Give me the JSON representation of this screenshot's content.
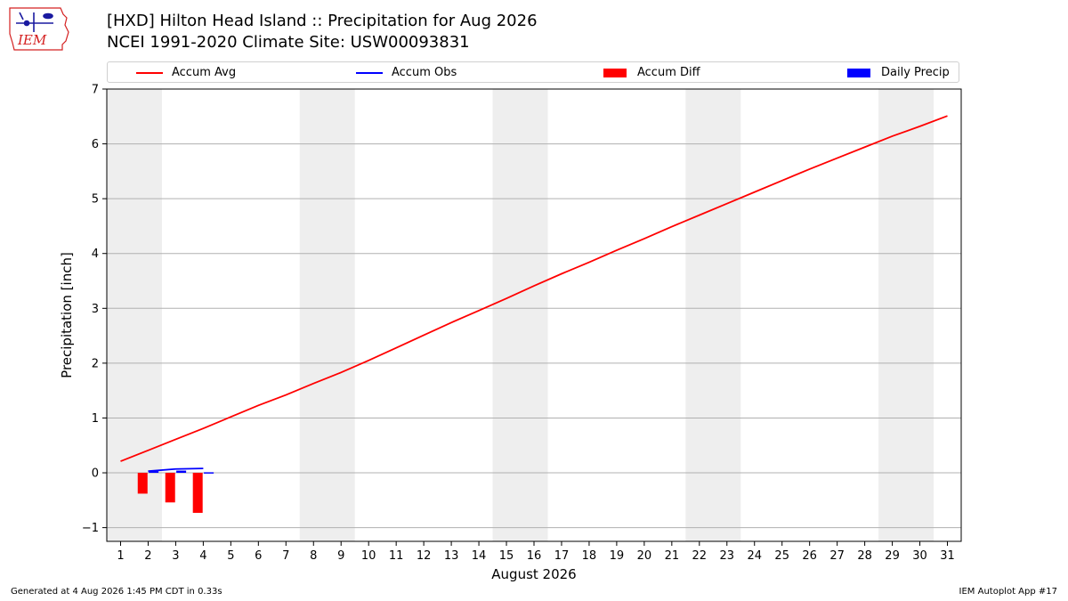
{
  "header": {
    "logo_text": "IEM",
    "title_line1": "[HXD] Hilton Head Island :: Precipitation for Aug 2026",
    "title_line2": "NCEI 1991-2020 Climate Site: USW00093831"
  },
  "footer": {
    "generated": "Generated at 4 Aug 2026 1:45 PM CDT in 0.33s",
    "app": "IEM Autoplot App #17"
  },
  "colors": {
    "avg": "#ff0000",
    "obs": "#0000ff",
    "diff": "#ff0000",
    "daily": "#0000ff",
    "weekend": "#eeeeee",
    "grid": "#b0b0b0",
    "logo": "#d42020"
  },
  "chart_data": {
    "type": "line",
    "title": "[HXD] Hilton Head Island :: Precipitation for Aug 2026",
    "subtitle": "NCEI 1991-2020 Climate Site: USW00093831",
    "xlabel": "August 2026",
    "ylabel": "Precipitation [inch]",
    "xlim": [
      0.5,
      31.5
    ],
    "ylim": [
      -1.25,
      7
    ],
    "x_ticks": [
      1,
      2,
      3,
      4,
      5,
      6,
      7,
      8,
      9,
      10,
      11,
      12,
      13,
      14,
      15,
      16,
      17,
      18,
      19,
      20,
      21,
      22,
      23,
      24,
      25,
      26,
      27,
      28,
      29,
      30,
      31
    ],
    "y_ticks": [
      -1,
      0,
      1,
      2,
      3,
      4,
      5,
      6,
      7
    ],
    "grid": "y",
    "legend_position": "top",
    "weekend_bands": [
      [
        0.5,
        2.5
      ],
      [
        7.5,
        9.5
      ],
      [
        14.5,
        16.5
      ],
      [
        21.5,
        23.5
      ],
      [
        28.5,
        30.5
      ]
    ],
    "legend": [
      {
        "name": "Accum Avg",
        "kind": "line",
        "color": "#ff0000"
      },
      {
        "name": "Accum Obs",
        "kind": "line",
        "color": "#0000ff"
      },
      {
        "name": "Accum Diff",
        "kind": "bar",
        "color": "#ff0000"
      },
      {
        "name": "Daily Precip",
        "kind": "bar",
        "color": "#0000ff"
      }
    ],
    "series": [
      {
        "name": "Accum Avg",
        "kind": "line",
        "x": [
          1,
          2,
          3,
          4,
          5,
          6,
          7,
          8,
          9,
          10,
          11,
          12,
          13,
          14,
          15,
          16,
          17,
          18,
          19,
          20,
          21,
          22,
          23,
          24,
          25,
          26,
          27,
          28,
          29,
          30,
          31
        ],
        "values": [
          0.21,
          0.41,
          0.61,
          0.81,
          1.02,
          1.23,
          1.42,
          1.63,
          1.83,
          2.05,
          2.28,
          2.51,
          2.74,
          2.96,
          3.18,
          3.41,
          3.63,
          3.84,
          4.06,
          4.27,
          4.49,
          4.7,
          4.91,
          5.12,
          5.33,
          5.54,
          5.74,
          5.94,
          6.14,
          6.32,
          6.51
        ]
      },
      {
        "name": "Accum Obs",
        "kind": "line",
        "x": [
          2,
          3,
          4
        ],
        "values": [
          0.03,
          0.07,
          0.08
        ]
      },
      {
        "name": "Accum Diff",
        "kind": "bar",
        "x": [
          1.8,
          2.8,
          3.8
        ],
        "values": [
          -0.38,
          -0.54,
          -0.73
        ]
      },
      {
        "name": "Daily Precip",
        "kind": "bar",
        "x": [
          2.2,
          3.2,
          4.2
        ],
        "values": [
          0.03,
          0.04,
          0.01
        ]
      }
    ]
  }
}
